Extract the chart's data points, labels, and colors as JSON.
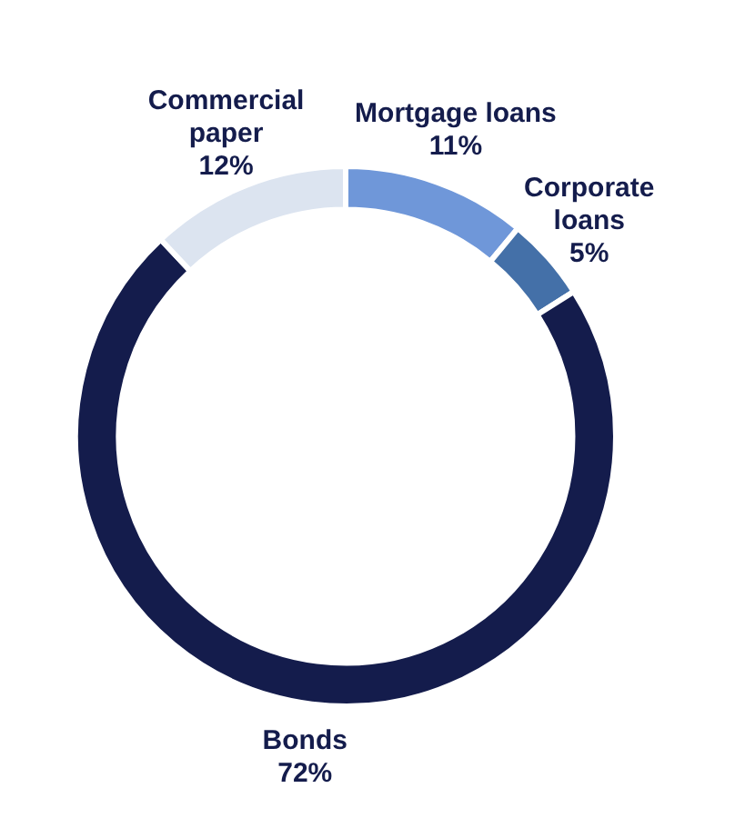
{
  "chart_data": {
    "type": "donut",
    "categories": [
      "Mortgage loans",
      "Corporate loans",
      "Bonds",
      "Commercial paper"
    ],
    "values": [
      11,
      5,
      72,
      12
    ],
    "value_labels": [
      "11%",
      "5%",
      "72%",
      "12%"
    ],
    "colors": [
      "#6f97d9",
      "#4470a8",
      "#141c4c",
      "#dce4f0"
    ],
    "legend": false
  }
}
